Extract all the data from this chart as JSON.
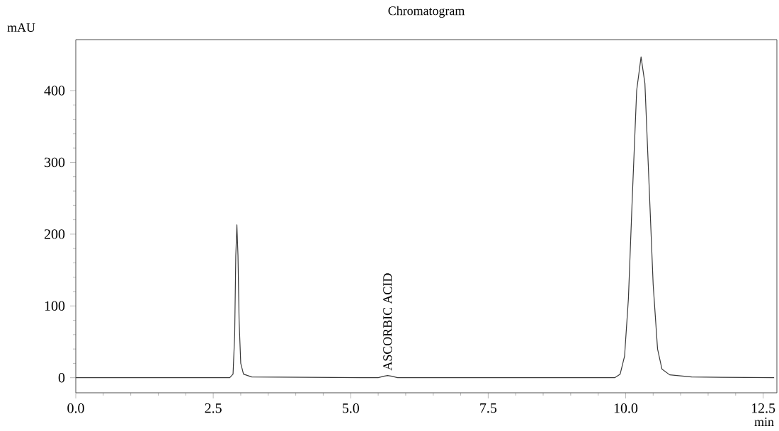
{
  "chart_data": {
    "type": "line",
    "title": "Chromatogram",
    "xlabel": "min",
    "ylabel": "mAU",
    "x": [
      0,
      2.8,
      2.86,
      2.89,
      2.91,
      2.93,
      2.95,
      2.97,
      3.0,
      3.05,
      3.2,
      5.5,
      5.6,
      5.67,
      5.75,
      5.85,
      9.8,
      9.9,
      9.98,
      10.05,
      10.12,
      10.2,
      10.28,
      10.35,
      10.42,
      10.5,
      10.58,
      10.66,
      10.8,
      11.2,
      12.7
    ],
    "values": [
      0,
      0,
      5,
      60,
      170,
      213,
      170,
      80,
      20,
      5,
      1,
      0,
      2,
      3,
      2,
      0,
      0,
      5,
      30,
      110,
      250,
      400,
      447,
      410,
      280,
      130,
      40,
      12,
      4,
      1,
      0
    ],
    "color": "#3a3a3a",
    "marker": "none",
    "xlim": [
      0,
      12.75
    ],
    "ylim": [
      -21,
      471
    ],
    "xticks": [
      {
        "value": 0,
        "label": "0.0"
      },
      {
        "value": 2.5,
        "label": "2.5"
      },
      {
        "value": 5,
        "label": "5.0"
      },
      {
        "value": 7.5,
        "label": "7.5"
      },
      {
        "value": 10,
        "label": "10.0"
      },
      {
        "value": 12.5,
        "label": "12.5"
      }
    ],
    "yticks": [
      0,
      100,
      200,
      300,
      400
    ],
    "annotations": [
      {
        "text": "ASCORBIC ACID",
        "x": 5.67,
        "y": 3
      }
    ]
  }
}
